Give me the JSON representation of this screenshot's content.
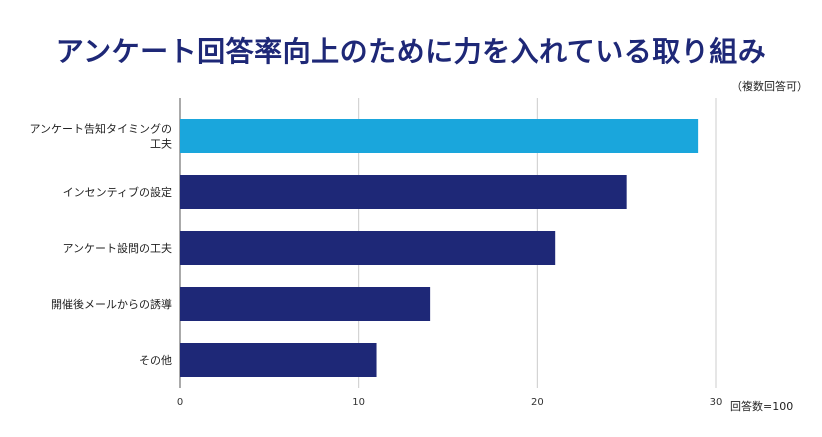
{
  "title": "アンケート回答率向上のために力を入れている取り組み",
  "note": "（複数回答可）",
  "footnote": "回答数=100",
  "colors": {
    "highlight": "#1aa6dc",
    "bar": "#1e2877",
    "grid": "#cccccc",
    "title": "#1e2877"
  },
  "chart_data": {
    "type": "bar",
    "orientation": "horizontal",
    "categories": [
      [
        "アンケート告知タイミングの",
        "工夫"
      ],
      [
        "インセンティブの設定"
      ],
      [
        "アンケート設問の工夫"
      ],
      [
        "開催後メールからの誘導"
      ],
      [
        "その他"
      ]
    ],
    "values": [
      29,
      25,
      21,
      14,
      11
    ],
    "xlim": [
      0,
      30
    ],
    "xticks": [
      0,
      10,
      20,
      30
    ],
    "grid": true,
    "highlight_index": 0
  }
}
